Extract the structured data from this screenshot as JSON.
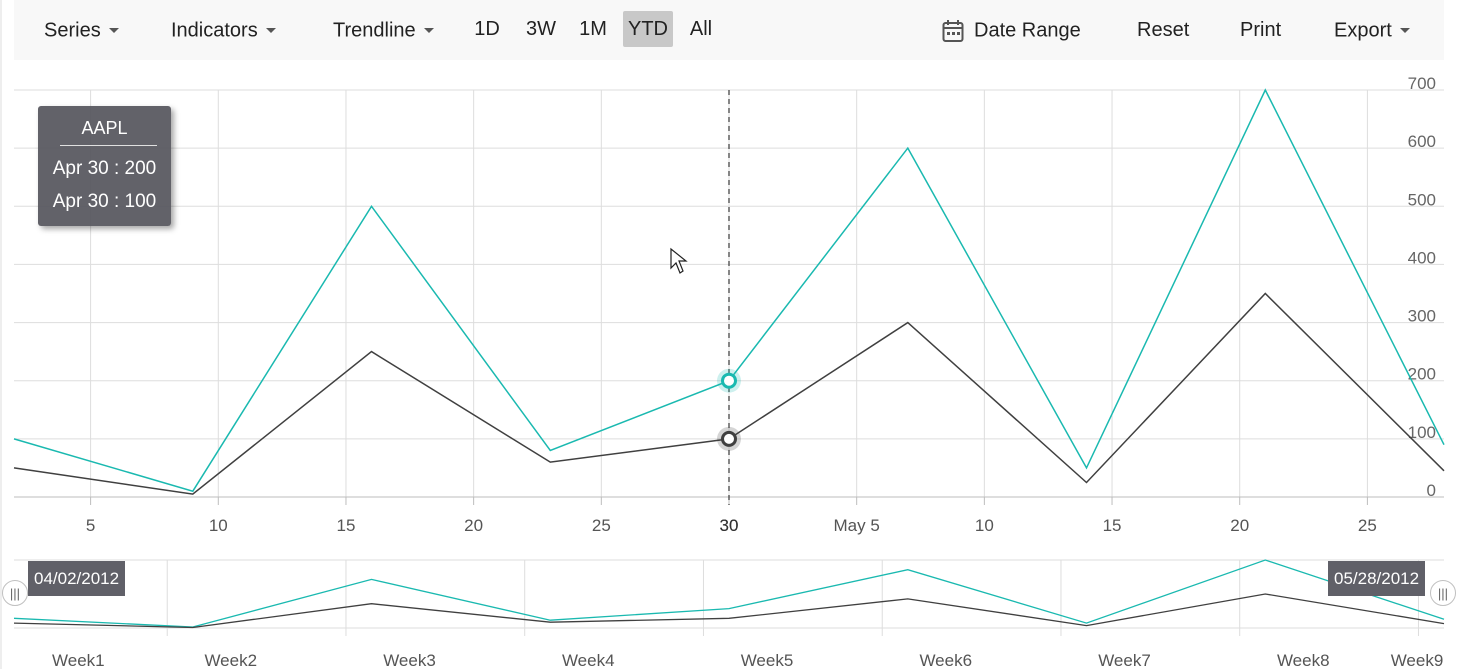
{
  "toolbar": {
    "series_label": "Series",
    "indicators_label": "Indicators",
    "trendline_label": "Trendline",
    "periods": [
      "1D",
      "3W",
      "1M",
      "YTD",
      "All"
    ],
    "active_period": "YTD",
    "date_range_label": "Date Range",
    "reset_label": "Reset",
    "print_label": "Print",
    "export_label": "Export"
  },
  "tooltip": {
    "title": "AAPL",
    "lines": [
      "Apr 30 : 200",
      "Apr 30 : 100"
    ]
  },
  "navigator": {
    "start_label": "04/02/2012",
    "end_label": "05/28/2012",
    "handle_glyph": "|||",
    "axis_labels": [
      "Week1",
      "Week2",
      "Week3",
      "Week4",
      "Week5",
      "Week6",
      "Week7",
      "Week8",
      "Week9"
    ]
  },
  "colors": {
    "series1": "#1ab9b0",
    "series2": "#404040",
    "toolbar_bg": "#f8f8f8",
    "tooltip_bg": "#56565e"
  },
  "chart_data": {
    "type": "line",
    "x_label_values": [
      "5",
      "10",
      "15",
      "20",
      "25",
      "30",
      "May 5",
      "10",
      "15",
      "20",
      "25"
    ],
    "x_dates": [
      "2012-04-02",
      "2012-04-09",
      "2012-04-16",
      "2012-04-23",
      "2012-04-30",
      "2012-05-07",
      "2012-05-14",
      "2012-05-21",
      "2012-05-28"
    ],
    "series": [
      {
        "values": [
          100,
          10,
          500,
          80,
          200,
          600,
          50,
          700,
          90
        ],
        "color": "#1ab9b0"
      },
      {
        "values": [
          50,
          5,
          250,
          60,
          100,
          300,
          25,
          350,
          45
        ],
        "color": "#404040"
      }
    ],
    "y_ticks": [
      0,
      100,
      200,
      300,
      400,
      500,
      600,
      700
    ],
    "ylim": [
      0,
      700
    ],
    "xlim": [
      "2012-04-02",
      "2012-05-28"
    ],
    "highlight": {
      "date": "2012-04-30",
      "label": "30"
    },
    "grid": true,
    "y_axis_side": "right"
  }
}
